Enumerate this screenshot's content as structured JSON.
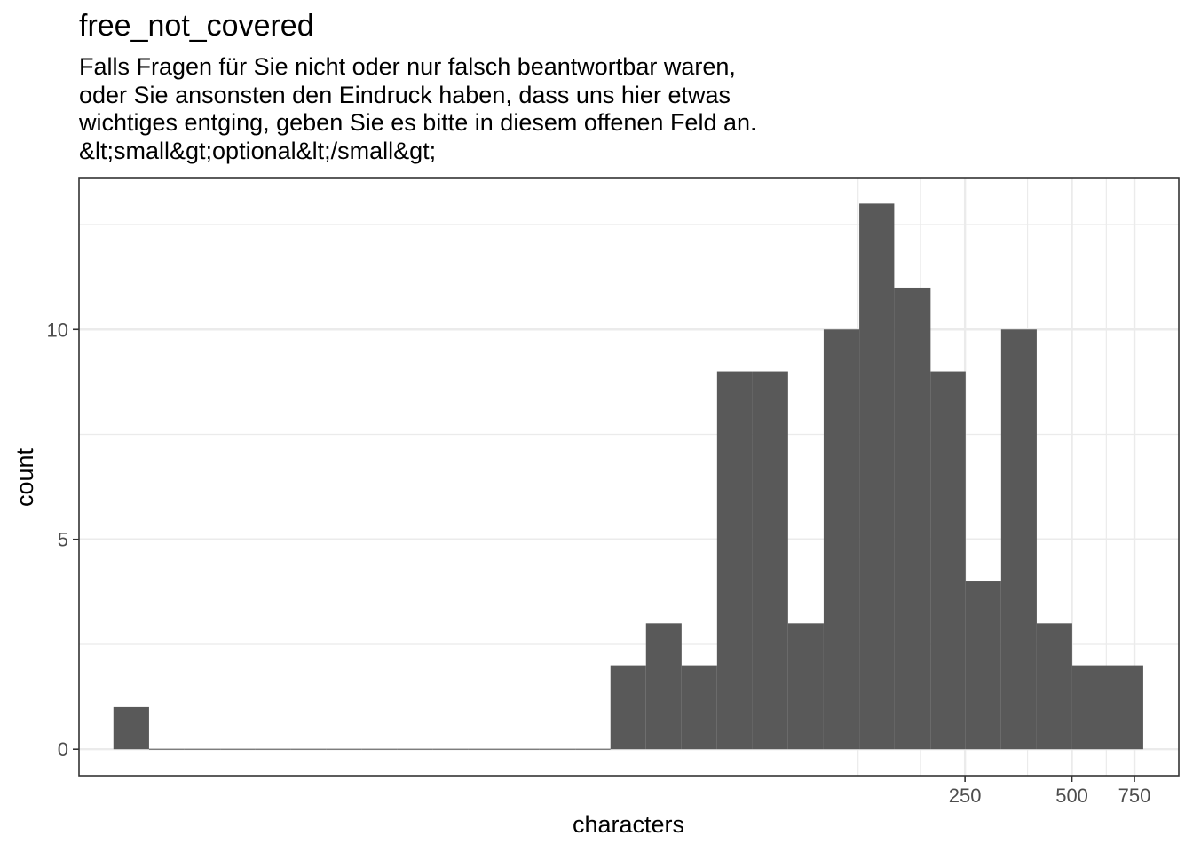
{
  "chart_data": {
    "type": "bar",
    "title": "free_not_covered",
    "subtitle_lines": [
      "Falls Fragen für Sie nicht oder nur falsch beantwortbar waren,",
      "oder Sie ansonsten den Eindruck haben, dass uns hier etwas",
      "wichtiges entging, geben Sie es bitte in diesem offenen Feld an.",
      "&lt;small&gt;optional&lt;/small&gt;"
    ],
    "xlabel": "characters",
    "ylabel": "count",
    "x_scale": "log10",
    "xlim": [
      0.8,
      1000
    ],
    "ylim": [
      -0.63,
      13.6
    ],
    "x_ticks": [
      250,
      500,
      750
    ],
    "x_tick_labels": [
      "250",
      "500",
      "750"
    ],
    "x_minor_gridlines": [
      125,
      187.5,
      375,
      625
    ],
    "y_ticks": [
      0,
      5,
      10
    ],
    "y_tick_labels": [
      "0",
      "5",
      "10"
    ],
    "y_minor_gridlines": [
      2.5,
      7.5,
      12.5
    ],
    "bins": [
      {
        "x_from": 1.0,
        "x_to": 1.26,
        "count": 1
      },
      {
        "x_from": 1.26,
        "x_to": 1.58,
        "count": 0
      },
      {
        "x_from": 1.58,
        "x_to": 2.0,
        "count": 0
      },
      {
        "x_from": 2.0,
        "x_to": 2.51,
        "count": 0
      },
      {
        "x_from": 2.51,
        "x_to": 3.16,
        "count": 0
      },
      {
        "x_from": 3.16,
        "x_to": 3.98,
        "count": 0
      },
      {
        "x_from": 3.98,
        "x_to": 5.01,
        "count": 0
      },
      {
        "x_from": 5.01,
        "x_to": 6.31,
        "count": 0
      },
      {
        "x_from": 6.31,
        "x_to": 7.94,
        "count": 0
      },
      {
        "x_from": 7.94,
        "x_to": 10.0,
        "count": 0
      },
      {
        "x_from": 10.0,
        "x_to": 12.6,
        "count": 0
      },
      {
        "x_from": 12.6,
        "x_to": 15.8,
        "count": 0
      },
      {
        "x_from": 15.8,
        "x_to": 20.0,
        "count": 0
      },
      {
        "x_from": 20.0,
        "x_to": 25.1,
        "count": 0
      },
      {
        "x_from": 25.1,
        "x_to": 31.6,
        "count": 2
      },
      {
        "x_from": 31.6,
        "x_to": 39.8,
        "count": 3
      },
      {
        "x_from": 39.8,
        "x_to": 50.1,
        "count": 2
      },
      {
        "x_from": 50.1,
        "x_to": 63.1,
        "count": 9
      },
      {
        "x_from": 63.1,
        "x_to": 79.4,
        "count": 9
      },
      {
        "x_from": 79.4,
        "x_to": 100,
        "count": 3
      },
      {
        "x_from": 100,
        "x_to": 126,
        "count": 10
      },
      {
        "x_from": 126,
        "x_to": 158,
        "count": 13
      },
      {
        "x_from": 158,
        "x_to": 200,
        "count": 11
      },
      {
        "x_from": 200,
        "x_to": 251,
        "count": 9
      },
      {
        "x_from": 251,
        "x_to": 316,
        "count": 4
      },
      {
        "x_from": 316,
        "x_to": 398,
        "count": 10
      },
      {
        "x_from": 398,
        "x_to": 501,
        "count": 3
      },
      {
        "x_from": 501,
        "x_to": 631,
        "count": 2
      },
      {
        "x_from": 631,
        "x_to": 794,
        "count": 2
      }
    ],
    "bar_color": "#595959",
    "grid": true,
    "legend": "none"
  }
}
